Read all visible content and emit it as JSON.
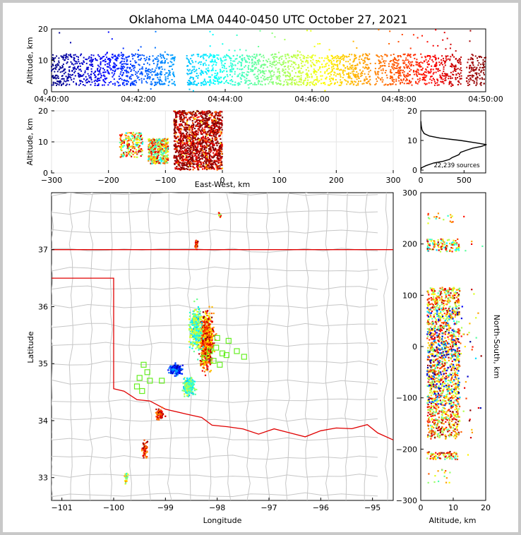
{
  "title": "Oklahoma LMA 0440-0450 UTC October 27, 2021",
  "chart_data": [
    {
      "type": "scatter",
      "panel": "altitude-vs-time",
      "ylabel": "Altitude, km",
      "xlabel": "",
      "x_ticks": [
        "04:40:00",
        "04:42:00",
        "04:44:00",
        "04:46:00",
        "04:48:00",
        "04:50:00"
      ],
      "xlim_minutes": [
        0,
        10
      ],
      "ylim": [
        0,
        20
      ],
      "y_ticks": [
        "0",
        "10",
        "20"
      ],
      "color_scale": "jet colored by time",
      "altitude_band_km": [
        2,
        12
      ]
    },
    {
      "type": "scatter",
      "panel": "altitude-vs-east-west",
      "xlabel": "East-West, km",
      "ylabel": "Altitude, km",
      "xlim": [
        -300,
        300
      ],
      "ylim": [
        0,
        20
      ],
      "x_ticks": [
        "−300",
        "−200",
        "−100",
        "0",
        "100",
        "200",
        "300"
      ],
      "y_ticks": [
        "0",
        "10",
        "20"
      ],
      "clusters": [
        {
          "x_range": [
            -180,
            -140
          ],
          "alt_range": [
            5,
            13
          ]
        },
        {
          "x_range": [
            -130,
            -95
          ],
          "alt_range": [
            3,
            11
          ]
        },
        {
          "x_range": [
            -85,
            0
          ],
          "alt_range": [
            1,
            20
          ]
        }
      ]
    },
    {
      "type": "line",
      "panel": "altitude-histogram",
      "xlim": [
        0,
        750
      ],
      "ylim": [
        0,
        20
      ],
      "x_ticks": [
        "0",
        "500"
      ],
      "y_ticks": [
        "0",
        "10",
        "20"
      ],
      "annotation": "22,239 sources",
      "profile": [
        [
          0,
          0.2
        ],
        [
          10,
          0.8
        ],
        [
          60,
          1.5
        ],
        [
          150,
          2.4
        ],
        [
          260,
          3
        ],
        [
          330,
          3.6
        ],
        [
          360,
          4.2
        ],
        [
          440,
          5.2
        ],
        [
          460,
          6
        ],
        [
          540,
          6.8
        ],
        [
          600,
          7.4
        ],
        [
          700,
          8
        ],
        [
          760,
          8.6
        ],
        [
          640,
          9.2
        ],
        [
          460,
          10
        ],
        [
          220,
          10.8
        ],
        [
          100,
          11.5
        ],
        [
          40,
          12.3
        ],
        [
          15,
          13.5
        ],
        [
          6,
          15
        ],
        [
          2,
          16.5
        ]
      ]
    },
    {
      "type": "scatter",
      "panel": "plan-view-map",
      "xlabel": "Longitude",
      "ylabel": "Latitude",
      "xlim": [
        -101.2,
        -94.6
      ],
      "ylim": [
        32.6,
        38
      ],
      "x_ticks": [
        "−101",
        "−100",
        "−99",
        "−98",
        "−97",
        "−96",
        "−95"
      ],
      "y_ticks": [
        "33",
        "34",
        "35",
        "36",
        "37"
      ],
      "station_markers": [
        [
          -98.0,
          35.45
        ],
        [
          -97.78,
          35.4
        ],
        [
          -97.62,
          35.22
        ],
        [
          -97.48,
          35.12
        ],
        [
          -97.9,
          35.18
        ],
        [
          -98.02,
          35.28
        ],
        [
          -97.95,
          34.98
        ],
        [
          -98.07,
          35.05
        ],
        [
          -98.14,
          35.22
        ],
        [
          -98.25,
          35.1
        ],
        [
          -99.42,
          34.98
        ],
        [
          -99.35,
          34.85
        ],
        [
          -99.5,
          34.75
        ],
        [
          -99.3,
          34.7
        ],
        [
          -99.07,
          34.7
        ],
        [
          -99.55,
          34.6
        ],
        [
          -99.45,
          34.52
        ],
        [
          -97.82,
          35.15
        ]
      ]
    },
    {
      "type": "scatter",
      "panel": "north-south-vs-altitude",
      "xlabel": "Altitude, km",
      "ylabel": "North-South, km",
      "xlim": [
        0,
        20
      ],
      "ylim": [
        -300,
        300
      ],
      "x_ticks": [
        "0",
        "10",
        "20"
      ],
      "y_ticks": [
        "−300",
        "−200",
        "−100",
        "0",
        "100",
        "200",
        "300"
      ]
    }
  ]
}
